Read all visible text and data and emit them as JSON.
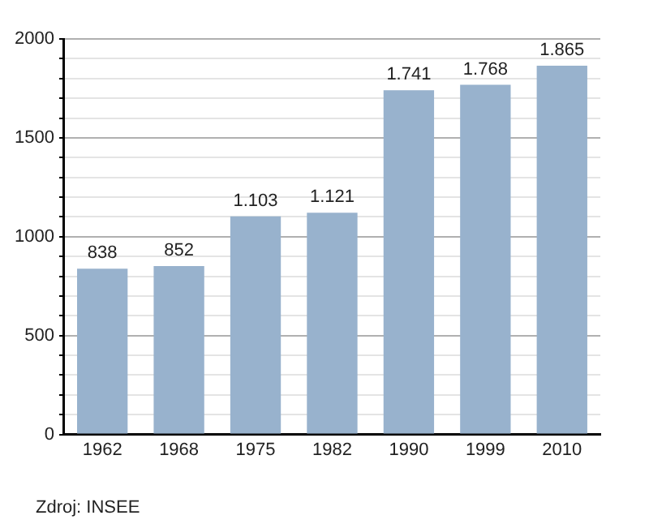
{
  "chart_data": {
    "type": "bar",
    "categories": [
      "1962",
      "1968",
      "1975",
      "1982",
      "1990",
      "1999",
      "2010"
    ],
    "values": [
      838,
      852,
      1103,
      1121,
      1741,
      1768,
      1865
    ],
    "value_labels": [
      "838",
      "852",
      "1.103",
      "1.121",
      "1.741",
      "1.768",
      "1.865"
    ],
    "color": "#98b2cd",
    "ylim": [
      0,
      2000
    ],
    "yticks": [
      0,
      {
        "value": 100,
        "label": null
      },
      {
        "value": 200,
        "label": null
      },
      {
        "value": 300,
        "label": null
      },
      {
        "value": 400,
        "label": null
      },
      500,
      {
        "value": 600,
        "label": null
      },
      {
        "value": 700,
        "label": null
      },
      {
        "value": 800,
        "label": null
      },
      {
        "value": 900,
        "label": null
      },
      1000,
      {
        "value": 1100,
        "label": null
      },
      {
        "value": 1200,
        "label": null
      },
      {
        "value": 1300,
        "label": null
      },
      {
        "value": 1400,
        "label": null
      },
      1500,
      {
        "value": 1600,
        "label": null
      },
      {
        "value": 1700,
        "label": null
      },
      {
        "value": 1800,
        "label": null
      },
      {
        "value": 1900,
        "label": null
      },
      2000
    ],
    "grid": true,
    "annotations": [
      "Zdroj: INSEE"
    ]
  }
}
